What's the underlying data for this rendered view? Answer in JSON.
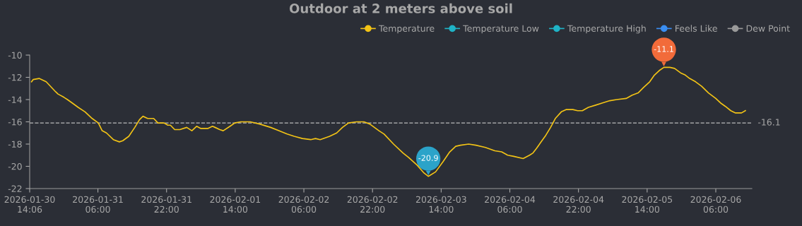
{
  "chart_data": {
    "type": "line",
    "title": "Outdoor at 2 meters above soil",
    "x": [
      "2026-01-30T14:32",
      "2026-01-30T14:54",
      "2026-01-30T16:18",
      "2026-01-30T17:57",
      "2026-01-30T20:09",
      "2026-01-30T20:42",
      "2026-01-30T22:06",
      "2026-01-30T22:54",
      "2026-01-31T00:00",
      "2026-01-31T01:24",
      "2026-01-31T03:00",
      "2026-01-31T04:40",
      "2026-01-31T06:06",
      "2026-01-31T07:00",
      "2026-01-31T08:00",
      "2026-01-31T09:36",
      "2026-01-31T11:00",
      "2026-01-31T11:48",
      "2026-01-31T13:12",
      "2026-01-31T14:36",
      "2026-01-31T15:42",
      "2026-01-31T16:30",
      "2026-01-31T17:36",
      "2026-01-31T19:00",
      "2026-01-31T20:00",
      "2026-01-31T21:24",
      "2026-01-31T22:18",
      "2026-01-31T22:54",
      "2026-01-31T23:54",
      "2026-02-01T01:06",
      "2026-02-01T02:42",
      "2026-02-01T03:54",
      "2026-02-01T05:00",
      "2026-02-01T06:00",
      "2026-02-01T07:36",
      "2026-02-01T08:42",
      "2026-02-01T09:18",
      "2026-02-01T10:24",
      "2026-02-01T11:12",
      "2026-02-01T12:48",
      "2026-02-01T13:54",
      "2026-02-01T15:18",
      "2026-02-01T17:30",
      "2026-02-01T19:42",
      "2026-02-01T22:15",
      "2026-02-02T00:10",
      "2026-02-02T02:06",
      "2026-02-02T03:45",
      "2026-02-02T05:40",
      "2026-02-02T07:36",
      "2026-02-02T08:42",
      "2026-02-02T09:48",
      "2026-02-02T12:00",
      "2026-02-02T13:39",
      "2026-02-02T15:00",
      "2026-02-02T16:24",
      "2026-02-02T18:18",
      "2026-02-02T20:00",
      "2026-02-02T21:22",
      "2026-02-02T23:30",
      "2026-02-03T00:42",
      "2026-02-03T02:54",
      "2026-02-03T05:06",
      "2026-02-03T06:24",
      "2026-02-03T08:24",
      "2026-02-03T10:00",
      "2026-02-03T11:00",
      "2026-02-03T12:42",
      "2026-02-03T14:24",
      "2026-02-03T16:00",
      "2026-02-03T17:24",
      "2026-02-03T18:30",
      "2026-02-03T20:24",
      "2026-02-03T22:06",
      "2026-02-04T00:18",
      "2026-02-04T02:30",
      "2026-02-04T04:06",
      "2026-02-04T05:30",
      "2026-02-04T06:54",
      "2026-02-04T09:06",
      "2026-02-04T10:36",
      "2026-02-04T11:24",
      "2026-02-04T12:12",
      "2026-02-04T13:18",
      "2026-02-04T14:24",
      "2026-02-04T15:30",
      "2026-02-04T16:36",
      "2026-02-04T18:00",
      "2026-02-04T19:06",
      "2026-02-04T20:42",
      "2026-02-04T21:48",
      "2026-02-04T22:54",
      "2026-02-05T00:18",
      "2026-02-05T02:00",
      "2026-02-05T03:36",
      "2026-02-05T05:18",
      "2026-02-05T06:54",
      "2026-02-05T09:06",
      "2026-02-05T10:30",
      "2026-02-05T11:54",
      "2026-02-05T13:12",
      "2026-02-05T14:36",
      "2026-02-05T15:42",
      "2026-02-05T16:48",
      "2026-02-05T17:54",
      "2026-02-05T19:18",
      "2026-02-05T20:24",
      "2026-02-05T21:48",
      "2026-02-05T22:54",
      "2026-02-05T23:54",
      "2026-02-06T01:18",
      "2026-02-06T02:42",
      "2026-02-06T04:18",
      "2026-02-06T06:00",
      "2026-02-06T07:06",
      "2026-02-06T08:12",
      "2026-02-06T09:30",
      "2026-02-06T10:36",
      "2026-02-06T12:00",
      "2026-02-06T12:54"
    ],
    "series": [
      {
        "name": "Temperature",
        "color": "#f2c316",
        "values": [
          -12.4,
          -12.2,
          -12.1,
          -12.4,
          -13.3,
          -13.5,
          -13.8,
          -14.0,
          -14.3,
          -14.7,
          -15.1,
          -15.7,
          -16.1,
          -16.8,
          -17.0,
          -17.6,
          -17.8,
          -17.7,
          -17.3,
          -16.5,
          -15.8,
          -15.5,
          -15.7,
          -15.7,
          -16.1,
          -16.1,
          -16.3,
          -16.3,
          -16.7,
          -16.7,
          -16.5,
          -16.8,
          -16.4,
          -16.6,
          -16.6,
          -16.4,
          -16.5,
          -16.7,
          -16.8,
          -16.4,
          -16.1,
          -16.0,
          -16.0,
          -16.2,
          -16.5,
          -16.8,
          -17.1,
          -17.3,
          -17.5,
          -17.6,
          -17.5,
          -17.6,
          -17.3,
          -17.0,
          -16.5,
          -16.1,
          -16.0,
          -16.0,
          -16.2,
          -16.8,
          -17.1,
          -18.0,
          -18.8,
          -19.2,
          -19.9,
          -20.6,
          -20.9,
          -20.5,
          -19.6,
          -18.7,
          -18.2,
          -18.1,
          -18.0,
          -18.1,
          -18.3,
          -18.6,
          -18.7,
          -19.0,
          -19.1,
          -19.3,
          -19.0,
          -18.8,
          -18.4,
          -17.8,
          -17.2,
          -16.5,
          -15.7,
          -15.1,
          -14.9,
          -14.9,
          -15.0,
          -15.0,
          -14.7,
          -14.5,
          -14.3,
          -14.1,
          -14.0,
          -13.9,
          -13.6,
          -13.4,
          -12.9,
          -12.4,
          -11.8,
          -11.4,
          -11.1,
          -11.1,
          -11.2,
          -11.6,
          -11.8,
          -12.1,
          -12.4,
          -12.8,
          -13.4,
          -13.9,
          -14.3,
          -14.6,
          -15.0,
          -15.2,
          -15.2,
          -15.0
        ]
      },
      {
        "name": "Temperature Low",
        "color": "#1fb3c6",
        "values": [
          null,
          null,
          null,
          null,
          null,
          null,
          null,
          null,
          null,
          null,
          null,
          null,
          null,
          null,
          null,
          null,
          null,
          null,
          null,
          null,
          null,
          null,
          null,
          null,
          null,
          null,
          null,
          null,
          null,
          null,
          null,
          null,
          null,
          null,
          null,
          null,
          null,
          null,
          null,
          null,
          null,
          null,
          null,
          null,
          null,
          null,
          null,
          null,
          null,
          null,
          null,
          null,
          null,
          null,
          null,
          null,
          null,
          null,
          null,
          null,
          null,
          null,
          null,
          null,
          null,
          null,
          null,
          null,
          null,
          null,
          null,
          null,
          null,
          null,
          null,
          null,
          null,
          null,
          null,
          null,
          null,
          null,
          null,
          null,
          null,
          null,
          null,
          null,
          null,
          null,
          null,
          null,
          null,
          null,
          null,
          null,
          null,
          null,
          null,
          null,
          null,
          null,
          null,
          null,
          null,
          null,
          null,
          null,
          null,
          null,
          null,
          null,
          null,
          null,
          null,
          null,
          null,
          null,
          null,
          null
        ]
      },
      {
        "name": "Temperature High",
        "color": "#1fb3c6",
        "values": [
          null,
          null,
          null,
          null,
          null,
          null,
          null,
          null,
          null,
          null,
          null,
          null,
          null,
          null,
          null,
          null,
          null,
          null,
          null,
          null,
          null,
          null,
          null,
          null,
          null,
          null,
          null,
          null,
          null,
          null,
          null,
          null,
          null,
          null,
          null,
          null,
          null,
          null,
          null,
          null,
          null,
          null,
          null,
          null,
          null,
          null,
          null,
          null,
          null,
          null,
          null,
          null,
          null,
          null,
          null,
          null,
          null,
          null,
          null,
          null,
          null,
          null,
          null,
          null,
          null,
          null,
          null,
          null,
          null,
          null,
          null,
          null,
          null,
          null,
          null,
          null,
          null,
          null,
          null,
          null,
          null,
          null,
          null,
          null,
          null,
          null,
          null,
          null,
          null,
          null,
          null,
          null,
          null,
          null,
          null,
          null,
          null,
          null,
          null,
          null,
          null,
          null,
          null,
          null,
          null,
          null,
          null,
          null,
          null,
          null,
          null,
          null,
          null,
          null,
          null,
          null,
          null,
          null,
          null,
          null
        ]
      },
      {
        "name": "Feels Like",
        "color": "#3a8ef2",
        "values": [
          null,
          null,
          null,
          null,
          null,
          null,
          null,
          null,
          null,
          null,
          null,
          null,
          null,
          null,
          null,
          null,
          null,
          null,
          null,
          null,
          null,
          null,
          null,
          null,
          null,
          null,
          null,
          null,
          null,
          null,
          null,
          null,
          null,
          null,
          null,
          null,
          null,
          null,
          null,
          null,
          null,
          null,
          null,
          null,
          null,
          null,
          null,
          null,
          null,
          null,
          null,
          null,
          null,
          null,
          null,
          null,
          null,
          null,
          null,
          null,
          null,
          null,
          null,
          null,
          null,
          null,
          null,
          null,
          null,
          null,
          null,
          null,
          null,
          null,
          null,
          null,
          null,
          null,
          null,
          null,
          null,
          null,
          null,
          null,
          null,
          null,
          null,
          null,
          null,
          null,
          null,
          null,
          null,
          null,
          null,
          null,
          null,
          null,
          null,
          null,
          null,
          null,
          null,
          null,
          null,
          null,
          null,
          null,
          null,
          null,
          null,
          null,
          null,
          null,
          null,
          null,
          null,
          null,
          null,
          null
        ]
      },
      {
        "name": "Dew Point",
        "color": "#9a9a9a",
        "values": [
          null,
          null,
          null,
          null,
          null,
          null,
          null,
          null,
          null,
          null,
          null,
          null,
          null,
          null,
          null,
          null,
          null,
          null,
          null,
          null,
          null,
          null,
          null,
          null,
          null,
          null,
          null,
          null,
          null,
          null,
          null,
          null,
          null,
          null,
          null,
          null,
          null,
          null,
          null,
          null,
          null,
          null,
          null,
          null,
          null,
          null,
          null,
          null,
          null,
          null,
          null,
          null,
          null,
          null,
          null,
          null,
          null,
          null,
          null,
          null,
          null,
          null,
          null,
          null,
          null,
          null,
          null,
          null,
          null,
          null,
          null,
          null,
          null,
          null,
          null,
          null,
          null,
          null,
          null,
          null,
          null,
          null,
          null,
          null,
          null,
          null,
          null,
          null,
          null,
          null,
          null,
          null,
          null,
          null,
          null,
          null,
          null,
          null,
          null,
          null,
          null,
          null,
          null,
          null,
          null,
          null,
          null,
          null,
          null,
          null,
          null,
          null,
          null,
          null,
          null,
          null,
          null,
          null,
          null,
          null
        ]
      }
    ],
    "xlim": [
      "2026-01-30T14:06",
      "2026-02-06T14:24"
    ],
    "xticks": [
      {
        "value": "2026-01-30T14:06",
        "label": "2026-01-30\n14:06"
      },
      {
        "value": "2026-01-31T06:00",
        "label": "2026-01-31\n06:00"
      },
      {
        "value": "2026-01-31T22:00",
        "label": "2026-01-31\n22:00"
      },
      {
        "value": "2026-02-01T14:00",
        "label": "2026-02-01\n14:00"
      },
      {
        "value": "2026-02-02T06:00",
        "label": "2026-02-02\n06:00"
      },
      {
        "value": "2026-02-02T22:00",
        "label": "2026-02-02\n22:00"
      },
      {
        "value": "2026-02-03T14:00",
        "label": "2026-02-03\n14:00"
      },
      {
        "value": "2026-02-04T06:00",
        "label": "2026-02-04\n06:00"
      },
      {
        "value": "2026-02-04T22:00",
        "label": "2026-02-04\n22:00"
      },
      {
        "value": "2026-02-05T14:00",
        "label": "2026-02-05\n14:00"
      },
      {
        "value": "2026-02-06T06:00",
        "label": "2026-02-06\n06:00"
      }
    ],
    "ylim": [
      -22,
      -10
    ],
    "yticks": [
      -22,
      -20,
      -18,
      -16,
      -14,
      -12,
      -10
    ],
    "ref_lines": [
      {
        "axis": "y",
        "value": -16.1,
        "label": "-16.1",
        "color": "#bbbbbb",
        "line_style": "dashed"
      }
    ],
    "annotations": [
      {
        "text": "-20.9",
        "x": "2026-02-03T11:00",
        "y": -20.9
      },
      {
        "text": "-11.1",
        "x": "2026-02-05T17:54",
        "y": -11.1
      }
    ],
    "grid": false,
    "legend": "top right"
  }
}
